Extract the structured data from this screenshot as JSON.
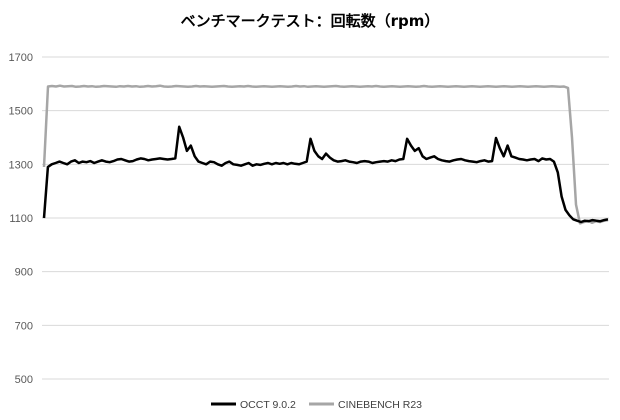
{
  "chart_data": {
    "type": "line",
    "title": "ベンチマークテスト：回転数（rpm）",
    "ylim": [
      500,
      1700
    ],
    "yticks": [
      500,
      700,
      900,
      1100,
      1300,
      1500,
      1700
    ],
    "grid": true,
    "legend_position": "bottom",
    "series": [
      {
        "name": "OCCT 9.0.2",
        "color": "#000000",
        "values": [
          1100,
          1290,
          1300,
          1305,
          1310,
          1305,
          1300,
          1310,
          1315,
          1305,
          1310,
          1308,
          1312,
          1305,
          1310,
          1315,
          1310,
          1308,
          1312,
          1318,
          1320,
          1315,
          1310,
          1312,
          1318,
          1322,
          1320,
          1315,
          1318,
          1320,
          1322,
          1320,
          1318,
          1320,
          1322,
          1440,
          1400,
          1350,
          1370,
          1330,
          1310,
          1305,
          1300,
          1310,
          1308,
          1300,
          1295,
          1305,
          1310,
          1300,
          1298,
          1295,
          1300,
          1305,
          1295,
          1300,
          1298,
          1302,
          1305,
          1300,
          1305,
          1302,
          1305,
          1300,
          1305,
          1302,
          1300,
          1305,
          1310,
          1395,
          1350,
          1330,
          1320,
          1340,
          1325,
          1315,
          1310,
          1312,
          1315,
          1310,
          1308,
          1305,
          1310,
          1312,
          1310,
          1305,
          1308,
          1310,
          1312,
          1310,
          1315,
          1312,
          1318,
          1320,
          1395,
          1370,
          1350,
          1360,
          1330,
          1320,
          1325,
          1330,
          1320,
          1315,
          1312,
          1310,
          1315,
          1318,
          1320,
          1315,
          1312,
          1310,
          1308,
          1312,
          1315,
          1310,
          1312,
          1398,
          1360,
          1330,
          1370,
          1330,
          1325,
          1320,
          1318,
          1315,
          1318,
          1320,
          1312,
          1322,
          1318,
          1320,
          1310,
          1270,
          1180,
          1130,
          1110,
          1095,
          1090,
          1085,
          1090,
          1088,
          1092,
          1090,
          1088,
          1092,
          1095
        ]
      },
      {
        "name": "CINEBENCH R23",
        "color": "#A6A6A6",
        "values": [
          1290,
          1590,
          1592,
          1590,
          1593,
          1590,
          1591,
          1592,
          1589,
          1590,
          1592,
          1590,
          1591,
          1589,
          1590,
          1592,
          1591,
          1590,
          1589,
          1591,
          1590,
          1592,
          1590,
          1591,
          1589,
          1590,
          1592,
          1590,
          1591,
          1593,
          1590,
          1589,
          1590,
          1592,
          1591,
          1590,
          1589,
          1590,
          1592,
          1590,
          1591,
          1590,
          1589,
          1590,
          1591,
          1592,
          1590,
          1589,
          1590,
          1591,
          1590,
          1592,
          1590,
          1589,
          1590,
          1591,
          1590,
          1589,
          1590,
          1591,
          1590,
          1589,
          1590,
          1592,
          1590,
          1591,
          1589,
          1590,
          1591,
          1590,
          1589,
          1590,
          1591,
          1592,
          1590,
          1589,
          1590,
          1591,
          1590,
          1589,
          1590,
          1591,
          1590,
          1592,
          1590,
          1589,
          1590,
          1591,
          1590,
          1589,
          1590,
          1591,
          1590,
          1589,
          1590,
          1592,
          1590,
          1589,
          1590,
          1591,
          1590,
          1589,
          1590,
          1591,
          1590,
          1589,
          1590,
          1591,
          1590,
          1589,
          1590,
          1591,
          1590,
          1589,
          1590,
          1591,
          1590,
          1589,
          1590,
          1591,
          1590,
          1589,
          1590,
          1591,
          1590,
          1589,
          1590,
          1591,
          1590,
          1589,
          1590,
          1585,
          1400,
          1150,
          1080,
          1085,
          1090,
          1082,
          1088,
          1085,
          1090,
          1092
        ]
      }
    ]
  }
}
